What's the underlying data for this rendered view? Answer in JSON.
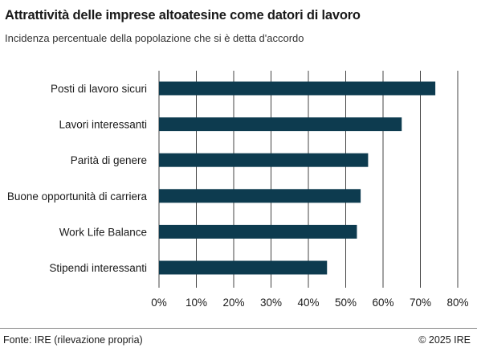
{
  "title": "Attrattività delle imprese altoatesine come datori di lavoro",
  "subtitle": "Incidenza percentuale della popolazione che si è detta d'accordo",
  "footer": {
    "source": "Fonte: IRE (rilevazione propria)",
    "copyright": "© 2025 IRE"
  },
  "colors": {
    "bar": "#0d3b4f",
    "grid": "#444444"
  },
  "chart_data": {
    "type": "bar",
    "orientation": "horizontal",
    "categories": [
      "Posti di lavoro sicuri",
      "Lavori interessanti",
      "Parità di genere",
      "Buone opportunità di carriera",
      "Work Life Balance",
      "Stipendi interessanti"
    ],
    "values": [
      74,
      65,
      56,
      54,
      53,
      45
    ],
    "xlim": [
      0,
      80
    ],
    "xticks": [
      "0%",
      "10%",
      "20%",
      "30%",
      "40%",
      "50%",
      "60%",
      "70%",
      "80%"
    ],
    "grid": "vertical",
    "xlabel": "",
    "ylabel": ""
  }
}
